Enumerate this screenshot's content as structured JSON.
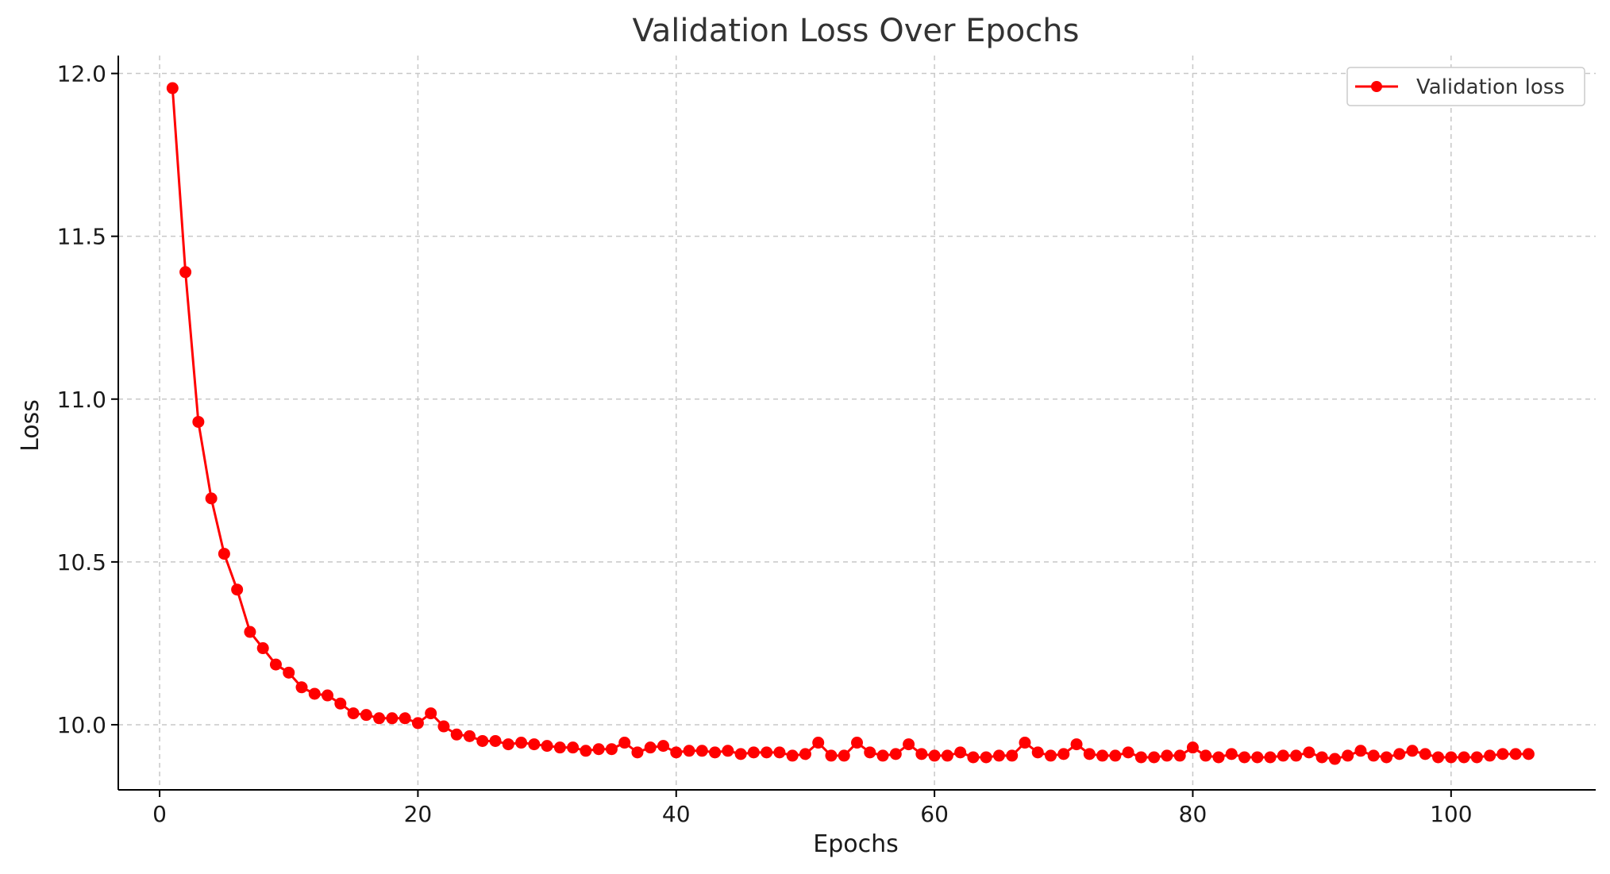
{
  "chart_data": {
    "type": "line",
    "title": "Validation Loss Over Epochs",
    "xlabel": "Epochs",
    "ylabel": "Loss",
    "xlim": [
      -3.2,
      111.2
    ],
    "ylim": [
      9.8,
      12.055
    ],
    "x_ticks": [
      0,
      20,
      40,
      60,
      80,
      100
    ],
    "y_ticks": [
      10.0,
      10.5,
      11.0,
      11.5,
      12.0
    ],
    "y_tick_labels": [
      "10.0",
      "10.5",
      "11.0",
      "11.5",
      "12.0"
    ],
    "grid": true,
    "legend_position": "top-right",
    "series": [
      {
        "name": "Validation loss",
        "color": "#ff0000",
        "marker": "circle",
        "x": [
          1,
          2,
          3,
          4,
          5,
          6,
          7,
          8,
          9,
          10,
          11,
          12,
          13,
          14,
          15,
          16,
          17,
          18,
          19,
          20,
          21,
          22,
          23,
          24,
          25,
          26,
          27,
          28,
          29,
          30,
          31,
          32,
          33,
          34,
          35,
          36,
          37,
          38,
          39,
          40,
          41,
          42,
          43,
          44,
          45,
          46,
          47,
          48,
          49,
          50,
          51,
          52,
          53,
          54,
          55,
          56,
          57,
          58,
          59,
          60,
          61,
          62,
          63,
          64,
          65,
          66,
          67,
          68,
          69,
          70,
          71,
          72,
          73,
          74,
          75,
          76,
          77,
          78,
          79,
          80,
          81,
          82,
          83,
          84,
          85,
          86,
          87,
          88,
          89,
          90,
          91,
          92,
          93,
          94,
          95,
          96,
          97,
          98,
          99,
          100,
          101,
          102,
          103,
          104,
          105,
          106
        ],
        "y": [
          11.955,
          11.39,
          10.93,
          10.695,
          10.525,
          10.415,
          10.285,
          10.235,
          10.185,
          10.16,
          10.115,
          10.095,
          10.09,
          10.065,
          10.035,
          10.03,
          10.02,
          10.02,
          10.02,
          10.005,
          10.035,
          9.995,
          9.97,
          9.965,
          9.95,
          9.95,
          9.94,
          9.945,
          9.94,
          9.935,
          9.93,
          9.93,
          9.92,
          9.925,
          9.925,
          9.945,
          9.915,
          9.93,
          9.935,
          9.915,
          9.92,
          9.92,
          9.915,
          9.92,
          9.91,
          9.915,
          9.915,
          9.915,
          9.905,
          9.91,
          9.945,
          9.905,
          9.905,
          9.945,
          9.915,
          9.905,
          9.91,
          9.94,
          9.91,
          9.905,
          9.905,
          9.915,
          9.9,
          9.9,
          9.905,
          9.905,
          9.945,
          9.915,
          9.905,
          9.91,
          9.94,
          9.91,
          9.905,
          9.905,
          9.915,
          9.9,
          9.9,
          9.905,
          9.905,
          9.93,
          9.905,
          9.9,
          9.91,
          9.9,
          9.9,
          9.9,
          9.905,
          9.905,
          9.915,
          9.9,
          9.895,
          9.905,
          9.92,
          9.905,
          9.9,
          9.91,
          9.92,
          9.91,
          9.9,
          9.9,
          9.9,
          9.9,
          9.905,
          9.91,
          9.91,
          9.91
        ]
      }
    ]
  }
}
